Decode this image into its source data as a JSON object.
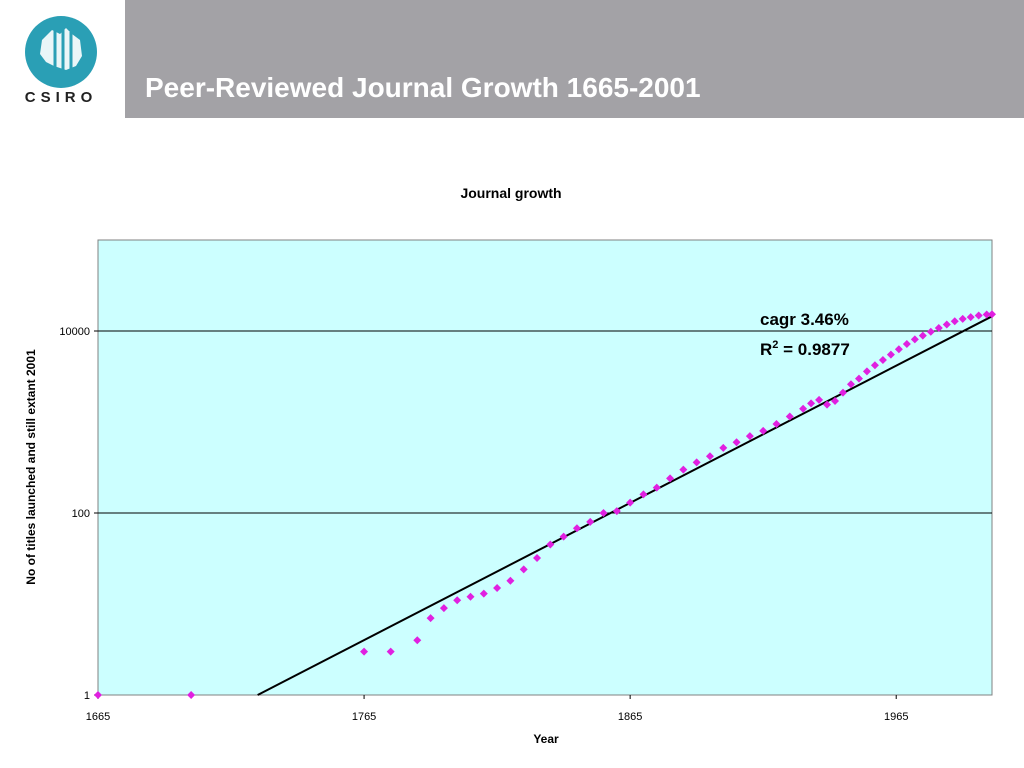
{
  "header": {
    "title": "Peer-Reviewed Journal Growth 1665-2001"
  },
  "logo": {
    "text": "CSIRO",
    "color": "#2a9fb5"
  },
  "chart_data": {
    "type": "scatter",
    "title": "Journal growth",
    "xlabel": "Year",
    "ylabel": "No of titles launched and still extant 2001",
    "y_scale": "log",
    "xlim": [
      1665,
      2001
    ],
    "ylim": [
      1,
      100000
    ],
    "x_ticks": [
      "1665",
      "1765",
      "1865",
      "1965"
    ],
    "y_ticks": [
      "1",
      "100",
      "10000"
    ],
    "grid": true,
    "plot_background": "#ccffff",
    "marker_color": "#e020e0",
    "trend_color": "#000000",
    "annotation": {
      "cagr": "cagr 3.46%",
      "r2_prefix": "R",
      "r2_sup": "2",
      "r2_value": " = 0.9877"
    },
    "trendline": {
      "x": [
        1725,
        2001
      ],
      "y": [
        1,
        14500
      ]
    },
    "series": [
      {
        "x": [
          1665,
          1700,
          1765,
          1775,
          1785,
          1790,
          1795,
          1800,
          1805,
          1810,
          1815,
          1820,
          1825,
          1830,
          1835,
          1840,
          1845,
          1850,
          1855,
          1860,
          1865,
          1870,
          1875,
          1880,
          1885,
          1890,
          1895,
          1900,
          1905,
          1910,
          1915,
          1920,
          1925,
          1930,
          1933,
          1936,
          1939,
          1942,
          1945,
          1948,
          1951,
          1954,
          1957,
          1960,
          1963,
          1966,
          1969,
          1972,
          1975,
          1978,
          1981,
          1984,
          1987,
          1990,
          1993,
          1996,
          1999,
          2001
        ],
        "y": [
          1,
          1,
          3,
          3,
          4,
          7,
          9,
          11,
          12,
          13,
          15,
          18,
          24,
          32,
          45,
          55,
          68,
          80,
          100,
          105,
          130,
          160,
          190,
          240,
          300,
          360,
          420,
          520,
          600,
          700,
          800,
          950,
          1150,
          1400,
          1600,
          1750,
          1550,
          1700,
          2100,
          2600,
          3000,
          3600,
          4200,
          4800,
          5500,
          6300,
          7200,
          8100,
          8900,
          9800,
          10800,
          11800,
          12800,
          13600,
          14200,
          14800,
          15200,
          15300
        ]
      }
    ]
  }
}
